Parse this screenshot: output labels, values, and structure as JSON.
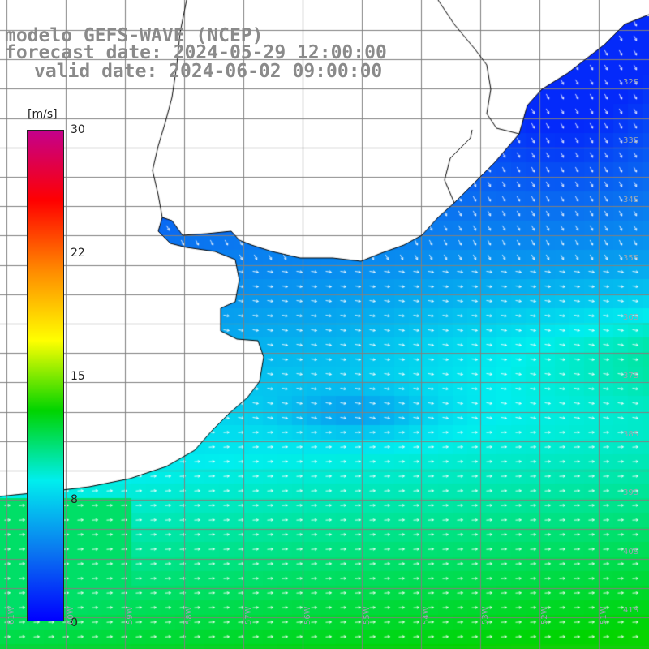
{
  "title": {
    "model": "modelo GEFS-WAVE (NCEP)",
    "forecast": "forecast date: 2024-05-29 12:00:00",
    "valid": "valid date: 2024-06-02 09:00:00"
  },
  "colorbar": {
    "units": "[m/s]",
    "ticks": [
      "30",
      "22",
      "15",
      "8",
      "0"
    ],
    "tick_values": [
      30,
      22,
      15,
      8,
      0
    ],
    "range": [
      0,
      30
    ],
    "colors": [
      "#0000ff",
      "#0a78f0",
      "#00eeee",
      "#00d400",
      "#ffff00",
      "#ff8a00",
      "#ff0000",
      "#c4008c"
    ]
  },
  "map": {
    "land_color": "#ffffff",
    "grid_color": "#808080",
    "lat_labels": [
      "32S",
      "33S",
      "34S",
      "35S",
      "36S",
      "37S",
      "38S",
      "39S",
      "40S",
      "41S"
    ],
    "lon_labels": [
      "61W",
      "60W",
      "59W",
      "58W",
      "57W",
      "56W",
      "55W",
      "54W",
      "53W",
      "52W",
      "51W"
    ]
  }
}
